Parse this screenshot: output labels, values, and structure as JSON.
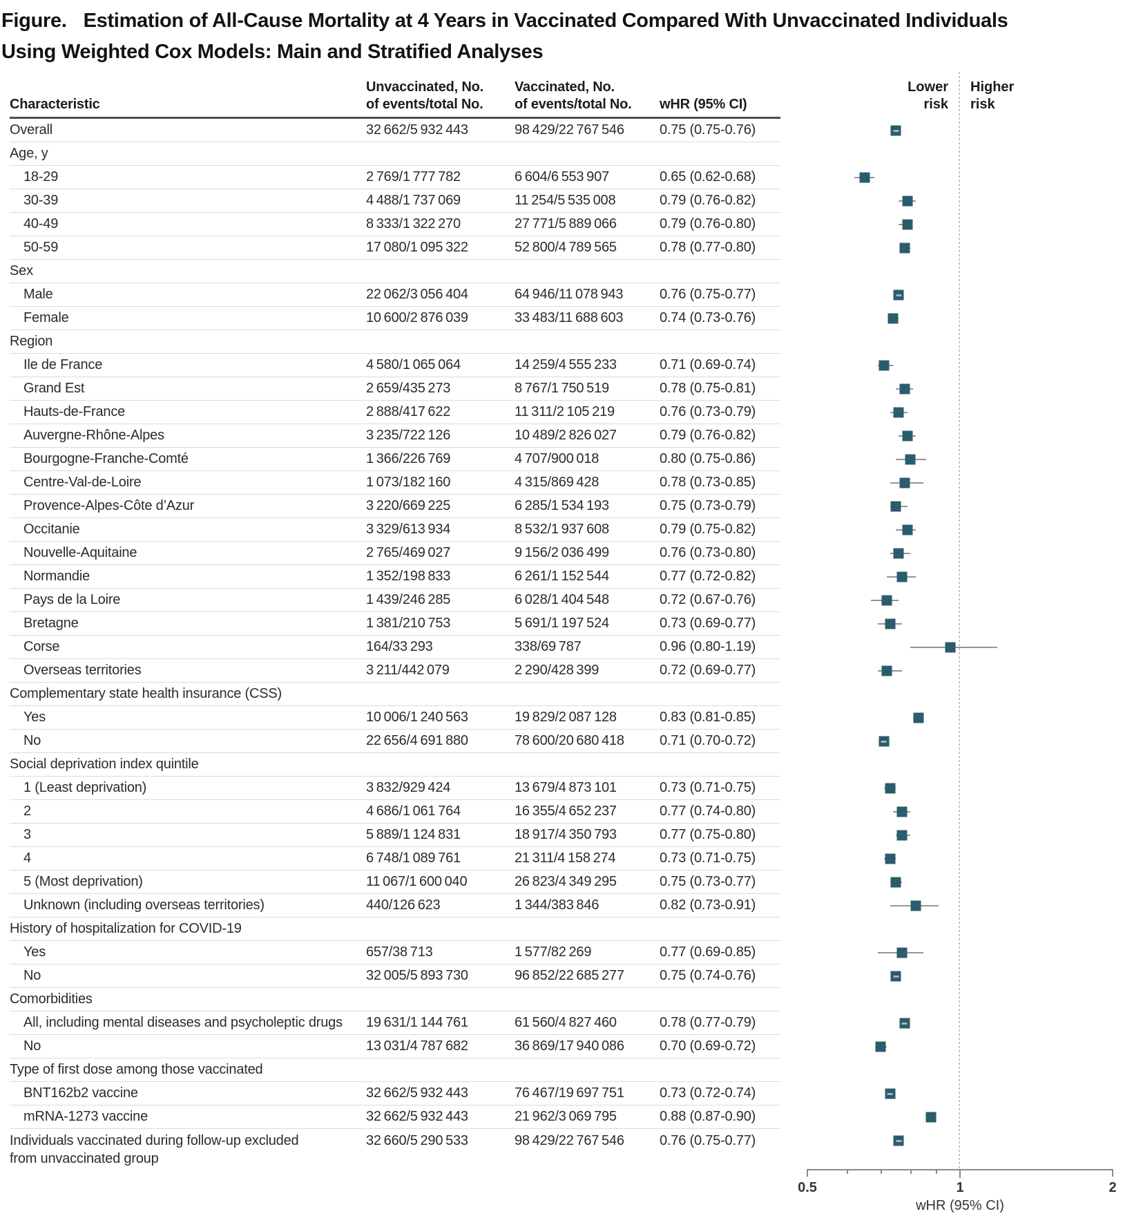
{
  "figure_title": {
    "prefix": "Figure.",
    "line1": "Estimation of All-Cause Mortality at 4 Years in Vaccinated Compared With Unvaccinated Individuals",
    "line2": "Using Weighted Cox Models: Main and Stratified Analyses"
  },
  "table_header": {
    "characteristic": "Characteristic",
    "unvaccinated": [
      "Unvaccinated, No.",
      "of events/total No."
    ],
    "vaccinated": [
      "Vaccinated, No.",
      "of events/total No."
    ],
    "whr": "wHR (95% CI)"
  },
  "plot_header": {
    "lower": [
      "Lower",
      "risk"
    ],
    "higher": [
      "Higher",
      "risk"
    ]
  },
  "chart_data": {
    "type": "scatter",
    "subtype": "forest-plot",
    "title": "Estimation of All-Cause Mortality at 4 Years in Vaccinated Compared With Unvaccinated Individuals Using Weighted Cox Models: Main and Stratified Analyses",
    "xlabel": "wHR (95% CI)",
    "marker_color": "#2b5c6b",
    "whisker_color": "#949494",
    "xaxis": {
      "label": "wHR (95% CI)",
      "scale": "log",
      "min": 0.5,
      "max": 2,
      "ticks": [
        {
          "v": 0.5,
          "label": "0.5"
        },
        {
          "v": 1,
          "label": "1"
        },
        {
          "v": 2,
          "label": "2"
        }
      ],
      "minor_ticks": [
        0.6,
        0.7,
        0.8,
        0.9
      ],
      "reference_line": 1
    },
    "rows": [
      {
        "label": "Overall",
        "indent": false,
        "group": false,
        "unvaccinated": "32 662/5 932 443",
        "vaccinated": "98 429/22 767 546",
        "whr": "0.75 (0.75-0.76)",
        "est": 0.75,
        "lo": 0.75,
        "hi": 0.76
      },
      {
        "label": "Age, y",
        "group": true
      },
      {
        "label": "18-29",
        "indent": true,
        "group": false,
        "unvaccinated": "2 769/1 777 782",
        "vaccinated": "6 604/6 553 907",
        "whr": "0.65 (0.62-0.68)",
        "est": 0.65,
        "lo": 0.62,
        "hi": 0.68
      },
      {
        "label": "30-39",
        "indent": true,
        "group": false,
        "unvaccinated": "4 488/1 737 069",
        "vaccinated": "11 254/5 535 008",
        "whr": "0.79 (0.76-0.82)",
        "est": 0.79,
        "lo": 0.76,
        "hi": 0.82
      },
      {
        "label": "40-49",
        "indent": true,
        "group": false,
        "unvaccinated": "8 333/1 322 270",
        "vaccinated": "27 771/5 889 066",
        "whr": "0.79 (0.76-0.80)",
        "est": 0.79,
        "lo": 0.76,
        "hi": 0.8
      },
      {
        "label": "50-59",
        "indent": true,
        "group": false,
        "unvaccinated": "17 080/1 095 322",
        "vaccinated": "52 800/4 789 565",
        "whr": "0.78 (0.77-0.80)",
        "est": 0.78,
        "lo": 0.77,
        "hi": 0.8
      },
      {
        "label": "Sex",
        "group": true
      },
      {
        "label": "Male",
        "indent": true,
        "group": false,
        "unvaccinated": "22 062/3 056 404",
        "vaccinated": "64 946/11 078 943",
        "whr": "0.76 (0.75-0.77)",
        "est": 0.76,
        "lo": 0.75,
        "hi": 0.77
      },
      {
        "label": "Female",
        "indent": true,
        "group": false,
        "unvaccinated": "10 600/2 876 039",
        "vaccinated": "33 483/11 688 603",
        "whr": "0.74 (0.73-0.76)",
        "est": 0.74,
        "lo": 0.73,
        "hi": 0.76
      },
      {
        "label": "Region",
        "group": true
      },
      {
        "label": "Ile de France",
        "indent": true,
        "group": false,
        "unvaccinated": "4 580/1 065 064",
        "vaccinated": "14 259/4 555 233",
        "whr": "0.71 (0.69-0.74)",
        "est": 0.71,
        "lo": 0.69,
        "hi": 0.74
      },
      {
        "label": "Grand Est",
        "indent": true,
        "group": false,
        "unvaccinated": "2 659/435 273",
        "vaccinated": "8 767/1 750 519",
        "whr": "0.78 (0.75-0.81)",
        "est": 0.78,
        "lo": 0.75,
        "hi": 0.81
      },
      {
        "label": "Hauts-de-France",
        "indent": true,
        "group": false,
        "unvaccinated": "2 888/417 622",
        "vaccinated": "11 311/2 105 219",
        "whr": "0.76 (0.73-0.79)",
        "est": 0.76,
        "lo": 0.73,
        "hi": 0.79
      },
      {
        "label": "Auvergne-Rhône-Alpes",
        "indent": true,
        "group": false,
        "unvaccinated": "3 235/722 126",
        "vaccinated": "10 489/2 826 027",
        "whr": "0.79 (0.76-0.82)",
        "est": 0.79,
        "lo": 0.76,
        "hi": 0.82
      },
      {
        "label": "Bourgogne-Franche-Comté",
        "indent": true,
        "group": false,
        "unvaccinated": "1 366/226 769",
        "vaccinated": "4 707/900 018",
        "whr": "0.80 (0.75-0.86)",
        "est": 0.8,
        "lo": 0.75,
        "hi": 0.86
      },
      {
        "label": "Centre-Val-de-Loire",
        "indent": true,
        "group": false,
        "unvaccinated": "1 073/182 160",
        "vaccinated": "4 315/869 428",
        "whr": "0.78 (0.73-0.85)",
        "est": 0.78,
        "lo": 0.73,
        "hi": 0.85
      },
      {
        "label": "Provence-Alpes-Côte d’Azur",
        "indent": true,
        "group": false,
        "unvaccinated": "3 220/669 225",
        "vaccinated": "6 285/1 534 193",
        "whr": "0.75 (0.73-0.79)",
        "est": 0.75,
        "lo": 0.73,
        "hi": 0.79
      },
      {
        "label": "Occitanie",
        "indent": true,
        "group": false,
        "unvaccinated": "3 329/613 934",
        "vaccinated": "8 532/1 937 608",
        "whr": "0.79 (0.75-0.82)",
        "est": 0.79,
        "lo": 0.75,
        "hi": 0.82
      },
      {
        "label": "Nouvelle-Aquitaine",
        "indent": true,
        "group": false,
        "unvaccinated": "2 765/469 027",
        "vaccinated": "9 156/2 036 499",
        "whr": "0.76 (0.73-0.80)",
        "est": 0.76,
        "lo": 0.73,
        "hi": 0.8
      },
      {
        "label": "Normandie",
        "indent": true,
        "group": false,
        "unvaccinated": "1 352/198 833",
        "vaccinated": "6 261/1 152 544",
        "whr": "0.77 (0.72-0.82)",
        "est": 0.77,
        "lo": 0.72,
        "hi": 0.82
      },
      {
        "label": "Pays de la Loire",
        "indent": true,
        "group": false,
        "unvaccinated": "1 439/246 285",
        "vaccinated": "6 028/1 404 548",
        "whr": "0.72 (0.67-0.76)",
        "est": 0.72,
        "lo": 0.67,
        "hi": 0.76
      },
      {
        "label": "Bretagne",
        "indent": true,
        "group": false,
        "unvaccinated": "1 381/210 753",
        "vaccinated": "5 691/1 197 524",
        "whr": "0.73 (0.69-0.77)",
        "est": 0.73,
        "lo": 0.69,
        "hi": 0.77
      },
      {
        "label": "Corse",
        "indent": true,
        "group": false,
        "unvaccinated": "164/33 293",
        "vaccinated": "338/69 787",
        "whr": "0.96 (0.80-1.19)",
        "est": 0.96,
        "lo": 0.8,
        "hi": 1.19
      },
      {
        "label": "Overseas territories",
        "indent": true,
        "group": false,
        "unvaccinated": "3 211/442 079",
        "vaccinated": "2 290/428 399",
        "whr": "0.72 (0.69-0.77)",
        "est": 0.72,
        "lo": 0.69,
        "hi": 0.77
      },
      {
        "label": "Complementary state health insurance (CSS)",
        "group": true
      },
      {
        "label": "Yes",
        "indent": true,
        "group": false,
        "unvaccinated": "10 006/1 240 563",
        "vaccinated": "19 829/2 087 128",
        "whr": "0.83 (0.81-0.85)",
        "est": 0.83,
        "lo": 0.81,
        "hi": 0.85
      },
      {
        "label": "No",
        "indent": true,
        "group": false,
        "unvaccinated": "22 656/4 691 880",
        "vaccinated": "78 600/20 680 418",
        "whr": "0.71 (0.70-0.72)",
        "est": 0.71,
        "lo": 0.7,
        "hi": 0.72
      },
      {
        "label": "Social deprivation index quintile",
        "group": true
      },
      {
        "label": "1 (Least deprivation)",
        "indent": true,
        "group": false,
        "unvaccinated": "3 832/929 424",
        "vaccinated": "13 679/4 873 101",
        "whr": "0.73 (0.71-0.75)",
        "est": 0.73,
        "lo": 0.71,
        "hi": 0.75
      },
      {
        "label": "2",
        "indent": true,
        "group": false,
        "unvaccinated": "4 686/1 061 764",
        "vaccinated": "16 355/4 652 237",
        "whr": "0.77 (0.74-0.80)",
        "est": 0.77,
        "lo": 0.74,
        "hi": 0.8
      },
      {
        "label": "3",
        "indent": true,
        "group": false,
        "unvaccinated": "5 889/1 124 831",
        "vaccinated": "18 917/4 350 793",
        "whr": "0.77 (0.75-0.80)",
        "est": 0.77,
        "lo": 0.75,
        "hi": 0.8
      },
      {
        "label": "4",
        "indent": true,
        "group": false,
        "unvaccinated": "6 748/1 089 761",
        "vaccinated": "21 311/4 158 274",
        "whr": "0.73 (0.71-0.75)",
        "est": 0.73,
        "lo": 0.71,
        "hi": 0.75
      },
      {
        "label": "5 (Most deprivation)",
        "indent": true,
        "group": false,
        "unvaccinated": "11 067/1 600 040",
        "vaccinated": "26 823/4 349 295",
        "whr": "0.75 (0.73-0.77)",
        "est": 0.75,
        "lo": 0.73,
        "hi": 0.77
      },
      {
        "label": "Unknown (including overseas territories)",
        "indent": true,
        "group": false,
        "unvaccinated": "440/126 623",
        "vaccinated": "1 344/383 846",
        "whr": "0.82 (0.73-0.91)",
        "est": 0.82,
        "lo": 0.73,
        "hi": 0.91
      },
      {
        "label": "History of hospitalization for COVID-19",
        "group": true
      },
      {
        "label": "Yes",
        "indent": true,
        "group": false,
        "unvaccinated": "657/38 713",
        "vaccinated": "1 577/82 269",
        "whr": "0.77 (0.69-0.85)",
        "est": 0.77,
        "lo": 0.69,
        "hi": 0.85
      },
      {
        "label": "No",
        "indent": true,
        "group": false,
        "unvaccinated": "32 005/5 893 730",
        "vaccinated": "96 852/22 685 277",
        "whr": "0.75 (0.74-0.76)",
        "est": 0.75,
        "lo": 0.74,
        "hi": 0.76
      },
      {
        "label": "Comorbidities",
        "group": true
      },
      {
        "label": "All, including mental diseases and psycholeptic drugs",
        "indent": true,
        "group": false,
        "unvaccinated": "19 631/1 144 761",
        "vaccinated": "61 560/4 827 460",
        "whr": "0.78 (0.77-0.79)",
        "est": 0.78,
        "lo": 0.77,
        "hi": 0.79
      },
      {
        "label": "No",
        "indent": true,
        "group": false,
        "unvaccinated": "13 031/4 787 682",
        "vaccinated": "36 869/17 940 086",
        "whr": "0.70 (0.69-0.72)",
        "est": 0.7,
        "lo": 0.69,
        "hi": 0.72
      },
      {
        "label": "Type of first dose among those vaccinated",
        "group": true
      },
      {
        "label": "BNT162b2 vaccine",
        "indent": true,
        "group": false,
        "unvaccinated": "32 662/5 932 443",
        "vaccinated": "76 467/19 697 751",
        "whr": "0.73 (0.72-0.74)",
        "est": 0.73,
        "lo": 0.72,
        "hi": 0.74
      },
      {
        "label": "mRNA-1273 vaccine",
        "indent": true,
        "group": false,
        "unvaccinated": "32 662/5 932 443",
        "vaccinated": "21 962/3 069 795",
        "whr": "0.88 (0.87-0.90)",
        "est": 0.88,
        "lo": 0.87,
        "hi": 0.9
      },
      {
        "label": "Individuals vaccinated during follow-up excluded",
        "label2": "from unvaccinated group",
        "indent": false,
        "group": false,
        "unvaccinated": "32 660/5 290 533",
        "vaccinated": "98 429/22 767 546",
        "whr": "0.76 (0.75-0.77)",
        "est": 0.76,
        "lo": 0.75,
        "hi": 0.77
      }
    ]
  }
}
